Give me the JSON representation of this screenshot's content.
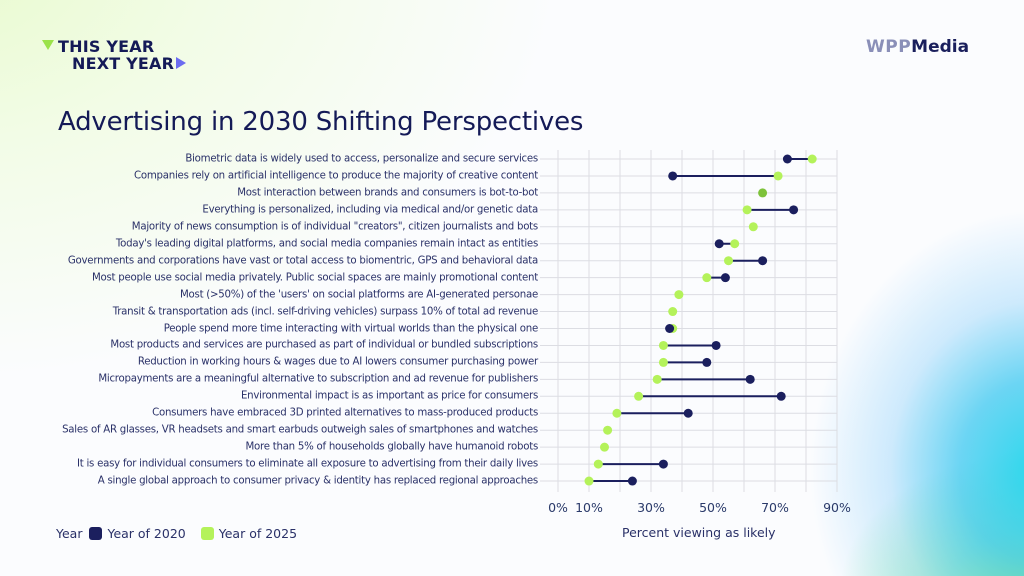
{
  "header": {
    "brand_left_line1": "THIS YEAR",
    "brand_left_line2": "NEXT YEAR",
    "brand_right_part1": "WPP",
    "brand_right_part2": "Media"
  },
  "colors": {
    "year_2020": "#1b1f5e",
    "year_2025": "#b4f25a",
    "overlap": "#7dc23a",
    "connector": "#1b1f5e",
    "grid": "#dcdde3",
    "text": "#1a1f5c"
  },
  "chart_data": {
    "type": "dumbbell",
    "title": "Advertising in 2030 Shifting Perspectives",
    "xlabel": "Percent viewing as likely",
    "ylabel": "",
    "xlim": [
      0,
      90
    ],
    "x_ticks": [
      0,
      10,
      30,
      50,
      70,
      90
    ],
    "x_tick_labels": [
      "0%",
      "10%",
      "30%",
      "50%",
      "70%",
      "90%"
    ],
    "grid": true,
    "legend_title": "Year",
    "legend_position": "bottom-left",
    "categories": [
      "Biometric data is widely used to access, personalize and secure services",
      "Companies rely on artificial intelligence to produce the majority of creative content",
      "Most interaction between brands and consumers is bot-to-bot",
      "Everything is personalized, including via medical and/or genetic data",
      "Majority of news consumption is of individual \"creators\", citizen journalists and bots",
      "Today's leading digital platforms, and social media companies remain intact as entities",
      "Governments and corporations have vast or total access to biomentric, GPS and behavioral data",
      "Most people use social media privately. Public social spaces are mainly promotional content",
      "Most (>50%) of the 'users' on social platforms are AI-generated personae",
      "Transit & transportation ads (incl. self-driving vehicles) surpass 10% of total ad revenue",
      "People spend more time interacting with virtual worlds than the physical one",
      "Most products and services are purchased as part of individual or bundled subscriptions",
      "Reduction in working hours & wages due to AI lowers consumer purchasing power",
      "Micropayments are a meaningful alternative to subscription and ad revenue for publishers",
      "Environmental impact is as important as price for consumers",
      "Consumers have embraced 3D printed alternatives to mass-produced products",
      "Sales of AR glasses, VR headsets and smart earbuds outweigh sales of smartphones and watches",
      "More than 5% of households globally have humanoid robots",
      "It is easy for individual consumers to eliminate all exposure to advertising from their daily lives",
      "A single global approach to consumer privacy & identity has replaced regional approaches"
    ],
    "series": [
      {
        "name": "Year of 2020",
        "values": [
          74,
          37,
          66,
          76,
          null,
          52,
          66,
          54,
          null,
          null,
          36,
          51,
          48,
          62,
          72,
          42,
          null,
          null,
          34,
          24
        ]
      },
      {
        "name": "Year of 2025",
        "values": [
          82,
          71,
          66,
          61,
          63,
          57,
          55,
          48,
          39,
          37,
          37,
          34,
          34,
          32,
          26,
          19,
          16,
          15,
          13,
          10
        ]
      }
    ]
  }
}
